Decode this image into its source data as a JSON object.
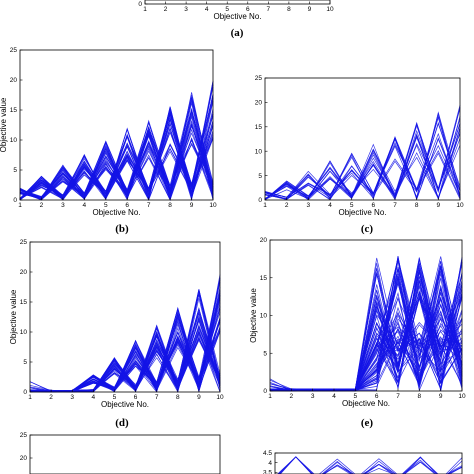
{
  "figure": {
    "line_color": "#1414e6",
    "panel_labels": [
      "(a)",
      "(b)",
      "(c)",
      "(d)",
      "(e)"
    ]
  },
  "chart_data": [
    {
      "id": "a",
      "type": "line",
      "label": "(a)",
      "xlabel": "Objective No.",
      "ylabel": "",
      "xlim": [
        1,
        10
      ],
      "xticks": [
        1,
        2,
        3,
        4,
        5,
        6,
        7,
        8,
        9,
        10
      ],
      "ylim": [
        0,
        1
      ],
      "yticks": [
        0
      ],
      "n_series": 0,
      "pattern": "none",
      "grid": false,
      "legend": "none"
    },
    {
      "id": "b",
      "type": "line",
      "label": "(b)",
      "xlabel": "Objective No.",
      "ylabel": "Objective value",
      "xlim": [
        1,
        10
      ],
      "xticks": [
        1,
        2,
        3,
        4,
        5,
        6,
        7,
        8,
        9,
        10
      ],
      "ylim": [
        0,
        25
      ],
      "yticks": [
        0,
        5,
        10,
        15,
        20,
        25
      ],
      "n_series": 60,
      "pattern": "zigzag_growing",
      "active_from": 1,
      "max_value": 20,
      "grid": false,
      "legend": "none"
    },
    {
      "id": "c",
      "type": "line",
      "label": "(c)",
      "xlabel": "Objective No.",
      "ylabel": "",
      "xlim": [
        1,
        10
      ],
      "xticks": [
        1,
        2,
        3,
        4,
        5,
        6,
        7,
        8,
        9,
        10
      ],
      "ylim": [
        0,
        25
      ],
      "yticks": [
        0,
        5,
        10,
        15,
        20,
        25
      ],
      "n_series": 25,
      "pattern": "zigzag_growing",
      "active_from": 1,
      "max_value": 20,
      "grid": false,
      "legend": "none"
    },
    {
      "id": "d",
      "type": "line",
      "label": "(d)",
      "xlabel": "Objective No.",
      "ylabel": "Objective value",
      "xlim": [
        1,
        10
      ],
      "xticks": [
        1,
        2,
        3,
        4,
        5,
        6,
        7,
        8,
        9,
        10
      ],
      "ylim": [
        0,
        25
      ],
      "yticks": [
        0,
        5,
        10,
        15,
        20,
        25
      ],
      "n_series": 70,
      "pattern": "zigzag_growing",
      "active_from": 4,
      "max_value": 20,
      "grid": false,
      "legend": "none"
    },
    {
      "id": "e",
      "type": "line",
      "label": "(e)",
      "xlabel": "Objective No.",
      "ylabel": "Objective value",
      "xlim": [
        1,
        10
      ],
      "xticks": [
        1,
        2,
        3,
        4,
        5,
        6,
        7,
        8,
        9,
        10
      ],
      "ylim": [
        0,
        20
      ],
      "yticks": [
        0,
        5,
        10,
        15,
        20
      ],
      "n_series": 80,
      "pattern": "zigzag_dense",
      "active_from": 6,
      "max_value": 18,
      "grid": false,
      "legend": "none"
    },
    {
      "id": "f",
      "type": "line",
      "label": "",
      "xlabel": "",
      "ylabel": "",
      "xlim": [
        1,
        10
      ],
      "xticks": [],
      "ylim": [
        0,
        25
      ],
      "yticks": [
        20,
        25
      ],
      "n_series": 0,
      "pattern": "none",
      "grid": false,
      "legend": "none"
    },
    {
      "id": "g",
      "type": "line",
      "label": "",
      "xlabel": "",
      "ylabel": "",
      "xlim": [
        1,
        10
      ],
      "xticks": [],
      "ylim": [
        0,
        4.5
      ],
      "yticks": [
        3.5,
        4,
        4.5
      ],
      "n_series": 6,
      "pattern": "spikes",
      "active_from": 1,
      "max_value": 4.3,
      "grid": false,
      "legend": "none"
    }
  ]
}
